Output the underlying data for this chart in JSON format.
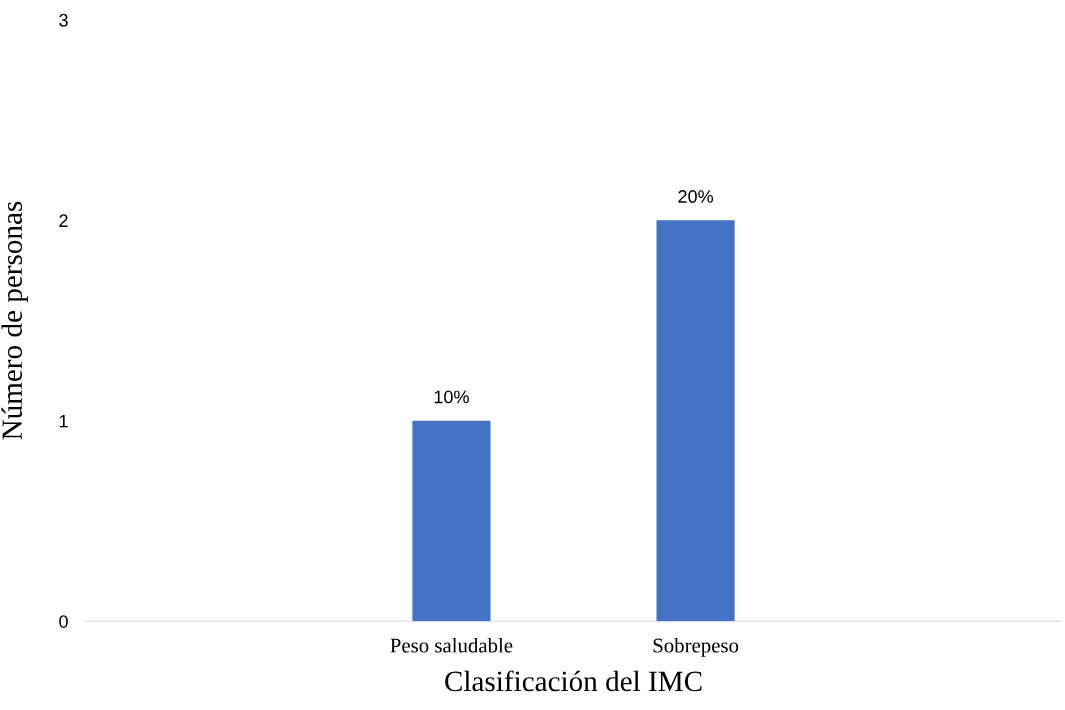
{
  "chart_data": {
    "type": "bar",
    "xlabel": "Clasificación del IMC",
    "ylabel": "Número de personas",
    "categories": [
      null,
      "Peso saludable",
      "Sobrepeso",
      null
    ],
    "values": [
      null,
      1,
      2,
      null
    ],
    "annotations": [
      {
        "text": "10%",
        "x": "Peso saludable",
        "y": 1
      },
      {
        "text": "20%",
        "x": "Sobrepeso",
        "y": 2
      }
    ],
    "color": "#4472c4",
    "ylim": [
      0,
      3
    ],
    "yticks": [
      0,
      1,
      2,
      3
    ],
    "grid": false,
    "legend": false
  }
}
